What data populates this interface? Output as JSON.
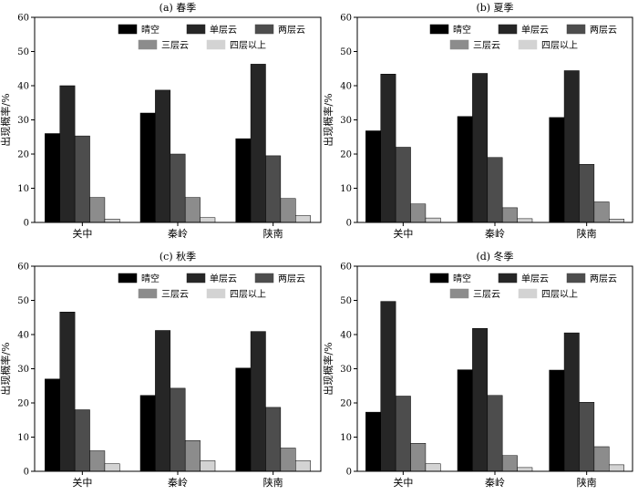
{
  "chart_data": [
    {
      "type": "bar",
      "title": "(a) 春季",
      "ylabel": "出现概率/%",
      "ylim": [
        0,
        60
      ],
      "yticks": [
        0,
        10,
        20,
        30,
        40,
        50,
        60
      ],
      "categories": [
        "关中",
        "秦岭",
        "陕南"
      ],
      "legend_position": "top-right",
      "series": [
        {
          "name": "晴空",
          "color": "#000000",
          "values": [
            26.0,
            32.0,
            24.5
          ]
        },
        {
          "name": "单层云",
          "color": "#262626",
          "values": [
            40.0,
            38.7,
            46.3
          ]
        },
        {
          "name": "两层云",
          "color": "#4d4d4d",
          "values": [
            25.3,
            20.0,
            19.5
          ]
        },
        {
          "name": "三层云",
          "color": "#8c8c8c",
          "values": [
            7.3,
            7.3,
            7.0
          ]
        },
        {
          "name": "四层以上",
          "color": "#d3d3d3",
          "values": [
            1.0,
            1.4,
            2.0
          ]
        }
      ]
    },
    {
      "type": "bar",
      "title": "(b) 夏季",
      "ylabel": "出现概率/%",
      "ylim": [
        0,
        60
      ],
      "yticks": [
        0,
        10,
        20,
        30,
        40,
        50,
        60
      ],
      "categories": [
        "关中",
        "秦岭",
        "陕南"
      ],
      "legend_position": "top-right",
      "series": [
        {
          "name": "晴空",
          "color": "#000000",
          "values": [
            26.8,
            31.0,
            30.7
          ]
        },
        {
          "name": "单层云",
          "color": "#262626",
          "values": [
            43.4,
            43.6,
            44.4
          ]
        },
        {
          "name": "两层云",
          "color": "#4d4d4d",
          "values": [
            22.0,
            19.0,
            17.0
          ]
        },
        {
          "name": "三层云",
          "color": "#8c8c8c",
          "values": [
            5.4,
            4.3,
            6.0
          ]
        },
        {
          "name": "四层以上",
          "color": "#d3d3d3",
          "values": [
            1.3,
            1.1,
            1.0
          ]
        }
      ]
    },
    {
      "type": "bar",
      "title": "(c) 秋季",
      "ylabel": "出现概率/%",
      "ylim": [
        0,
        60
      ],
      "yticks": [
        0,
        10,
        20,
        30,
        40,
        50,
        60
      ],
      "categories": [
        "关中",
        "秦岭",
        "陕南"
      ],
      "legend_position": "top-right",
      "series": [
        {
          "name": "晴空",
          "color": "#000000",
          "values": [
            27.0,
            22.2,
            30.2
          ]
        },
        {
          "name": "单层云",
          "color": "#262626",
          "values": [
            46.6,
            41.2,
            40.9
          ]
        },
        {
          "name": "两层云",
          "color": "#4d4d4d",
          "values": [
            18.0,
            24.3,
            18.7
          ]
        },
        {
          "name": "三层云",
          "color": "#8c8c8c",
          "values": [
            6.0,
            9.0,
            6.8
          ]
        },
        {
          "name": "四层以上",
          "color": "#d3d3d3",
          "values": [
            2.2,
            3.1,
            3.1
          ]
        }
      ]
    },
    {
      "type": "bar",
      "title": "(d) 冬季",
      "ylabel": "出现概率/%",
      "ylim": [
        0,
        60
      ],
      "yticks": [
        0,
        10,
        20,
        30,
        40,
        50,
        60
      ],
      "categories": [
        "关中",
        "秦岭",
        "陕南"
      ],
      "legend_position": "top-right",
      "series": [
        {
          "name": "晴空",
          "color": "#000000",
          "values": [
            17.3,
            29.7,
            29.6
          ]
        },
        {
          "name": "单层云",
          "color": "#262626",
          "values": [
            49.7,
            41.8,
            40.5
          ]
        },
        {
          "name": "两层云",
          "color": "#4d4d4d",
          "values": [
            22.0,
            22.2,
            20.2
          ]
        },
        {
          "name": "三层云",
          "color": "#8c8c8c",
          "values": [
            8.2,
            4.6,
            7.2
          ]
        },
        {
          "name": "四层以上",
          "color": "#d3d3d3",
          "values": [
            2.2,
            1.1,
            1.9
          ]
        }
      ]
    }
  ]
}
